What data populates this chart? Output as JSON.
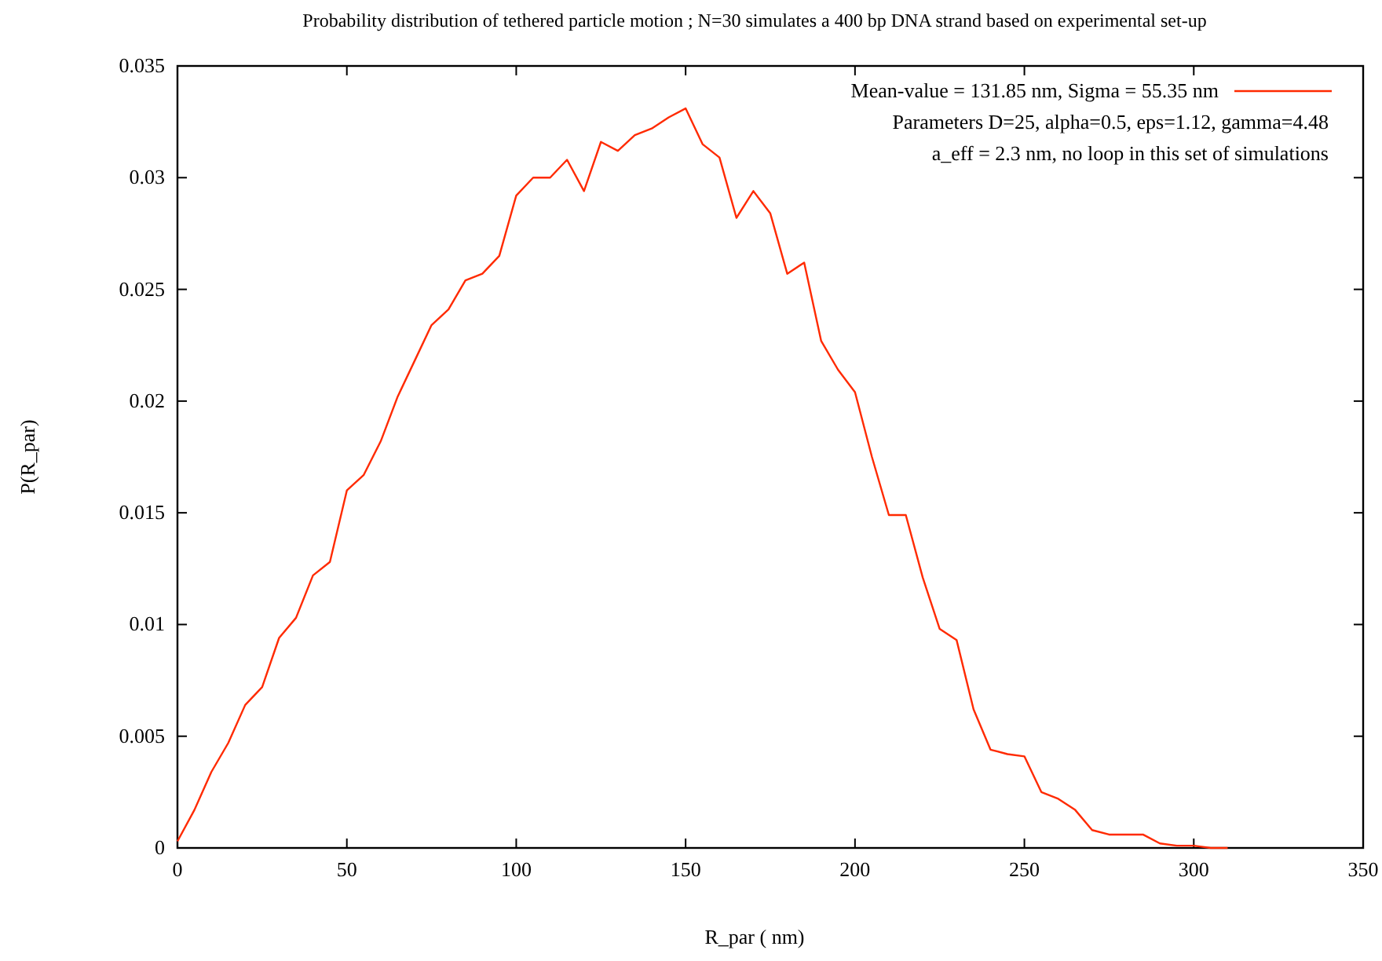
{
  "chart_data": {
    "type": "line",
    "title": "Probability distribution of tethered particle motion ; N=30 simulates a 400 bp DNA strand based on experimental set-up",
    "xlabel": "R_par ( nm)",
    "ylabel": "P(R_par)",
    "x": [
      0,
      5,
      10,
      15,
      20,
      25,
      30,
      35,
      40,
      45,
      50,
      55,
      60,
      65,
      70,
      75,
      80,
      85,
      90,
      95,
      100,
      105,
      110,
      115,
      120,
      125,
      130,
      135,
      140,
      145,
      150,
      155,
      160,
      165,
      170,
      175,
      180,
      185,
      190,
      195,
      200,
      205,
      210,
      215,
      220,
      225,
      230,
      235,
      240,
      245,
      250,
      255,
      260,
      265,
      270,
      275,
      280,
      285,
      290,
      295,
      300,
      305,
      310
    ],
    "series": [
      {
        "name": "Mean-value = 131.85 nm, Sigma = 55.35 nm",
        "color": "#ff2a00",
        "values": [
          0.0003,
          0.0017,
          0.0034,
          0.0047,
          0.0064,
          0.0072,
          0.0094,
          0.0103,
          0.0122,
          0.0128,
          0.016,
          0.0167,
          0.0182,
          0.0202,
          0.0218,
          0.0234,
          0.0241,
          0.0254,
          0.0257,
          0.0265,
          0.0292,
          0.03,
          0.03,
          0.0308,
          0.0294,
          0.0316,
          0.0312,
          0.0319,
          0.0322,
          0.0327,
          0.0331,
          0.0315,
          0.0309,
          0.0282,
          0.0294,
          0.0284,
          0.0257,
          0.0262,
          0.0227,
          0.0214,
          0.0204,
          0.0175,
          0.0149,
          0.0149,
          0.0121,
          0.0098,
          0.0093,
          0.0062,
          0.0044,
          0.0042,
          0.0041,
          0.0025,
          0.0022,
          0.0017,
          0.0008,
          0.0006,
          0.0006,
          0.0006,
          0.0002,
          0.0001,
          0.0001,
          0,
          0
        ]
      }
    ],
    "annotations": [
      "Parameters D=25, alpha=0.5, eps=1.12, gamma=4.48",
      "a_eff = 2.3 nm, no loop in this set of simulations"
    ],
    "xlim": [
      0,
      350
    ],
    "xticks": [
      0,
      50,
      100,
      150,
      200,
      250,
      300,
      350
    ],
    "ylim": [
      0,
      0.035
    ],
    "yticks": [
      0,
      0.005,
      0.01,
      0.015,
      0.02,
      0.025,
      0.03,
      0.035
    ],
    "grid": false,
    "legend": "top right",
    "marker": "none",
    "line_style": "solid"
  }
}
